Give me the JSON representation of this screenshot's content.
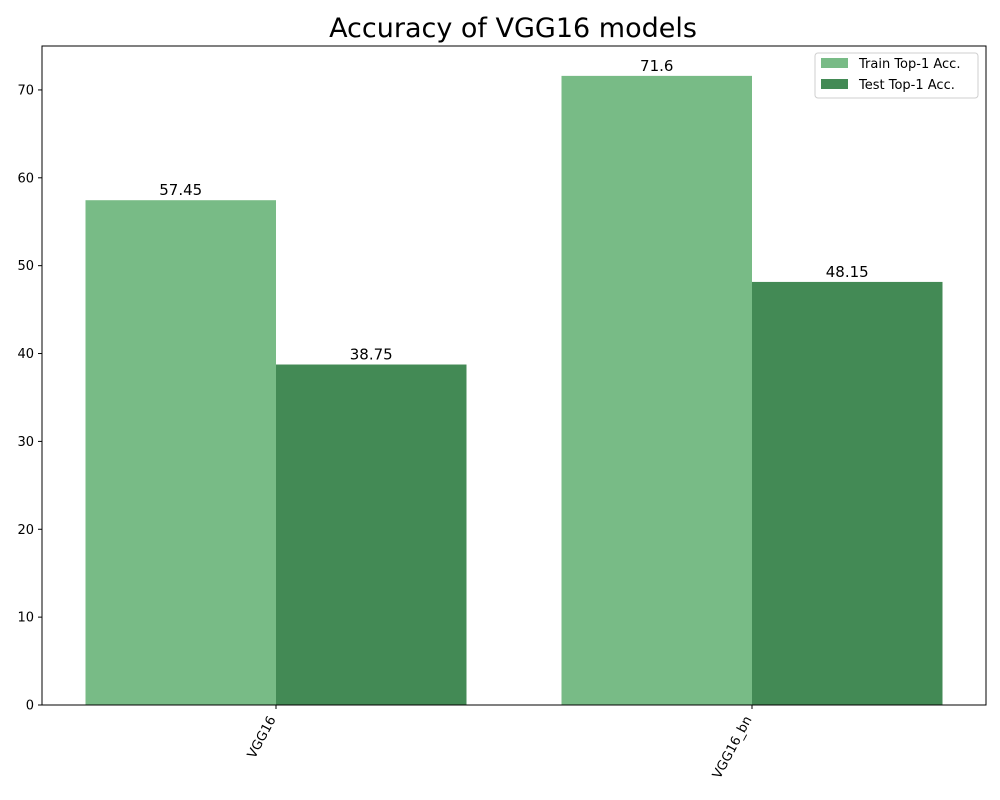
{
  "chart_data": {
    "type": "bar",
    "title": "Accuracy of VGG16 models",
    "xlabel": "",
    "ylabel": "",
    "categories": [
      "VGG16",
      "VGG16_bn"
    ],
    "series": [
      {
        "name": "Train Top-1 Acc.",
        "values": [
          57.45,
          71.6
        ],
        "color": "#78bb86"
      },
      {
        "name": "Test Top-1 Acc.",
        "values": [
          38.75,
          48.15
        ],
        "color": "#438a55"
      }
    ],
    "value_labels": [
      [
        "57.45",
        "71.6"
      ],
      [
        "38.75",
        "48.15"
      ]
    ],
    "ylim": [
      0,
      75
    ],
    "yticks": [
      0,
      10,
      20,
      30,
      40,
      50,
      60,
      70
    ],
    "grid": false,
    "legend_position": "top-right"
  }
}
